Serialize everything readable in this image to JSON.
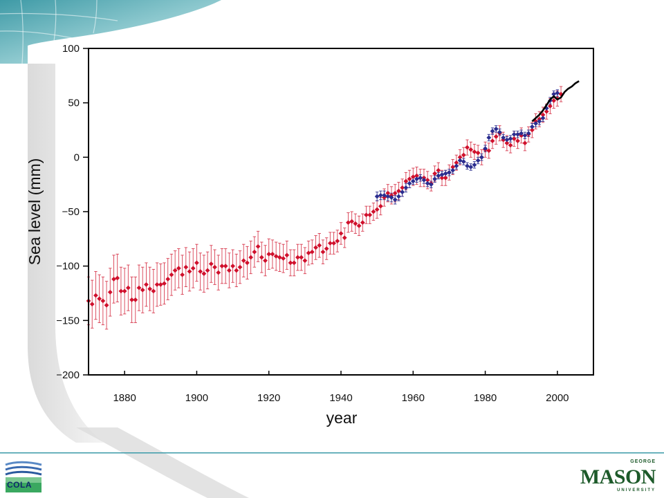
{
  "colors": {
    "hist_series": "#d0102c",
    "tide_series": "#2a2d8f",
    "sat_series": "#000000",
    "error_bar": "#d83c50",
    "accent_teal": "#3a9aa8"
  },
  "footer": {
    "left_logo_text": "COLA",
    "right_logo_top": "GEORGE",
    "right_logo_main": "MASON",
    "right_logo_bottom": "UNIVERSITY"
  },
  "chart_data": {
    "type": "scatter",
    "xlabel": "year",
    "ylabel": "Sea level (mm)",
    "xlim": [
      1870,
      2010
    ],
    "ylim": [
      -200,
      100
    ],
    "xticks": [
      1880,
      1900,
      1920,
      1940,
      1960,
      1980,
      2000
    ],
    "yticks": [
      -200,
      -150,
      -100,
      -50,
      0,
      50,
      100
    ],
    "grid": false,
    "series": [
      {
        "color": "red",
        "markers": "diamond",
        "error_bars": true,
        "x": [
          1870,
          1871,
          1872,
          1873,
          1874,
          1875,
          1876,
          1877,
          1878,
          1879,
          1880,
          1881,
          1882,
          1883,
          1884,
          1885,
          1886,
          1887,
          1888,
          1889,
          1890,
          1891,
          1892,
          1893,
          1894,
          1895,
          1896,
          1897,
          1898,
          1899,
          1900,
          1901,
          1902,
          1903,
          1904,
          1905,
          1906,
          1907,
          1908,
          1909,
          1910,
          1911,
          1912,
          1913,
          1914,
          1915,
          1916,
          1917,
          1918,
          1919,
          1920,
          1921,
          1922,
          1923,
          1924,
          1925,
          1926,
          1927,
          1928,
          1929,
          1930,
          1931,
          1932,
          1933,
          1934,
          1935,
          1936,
          1937,
          1938,
          1939,
          1940,
          1941,
          1942,
          1943,
          1944,
          1945,
          1946,
          1947,
          1948,
          1949,
          1950,
          1951,
          1952,
          1953,
          1954,
          1955,
          1956,
          1957,
          1958,
          1959,
          1960,
          1961,
          1962,
          1963,
          1964,
          1965,
          1966,
          1967,
          1968,
          1969,
          1970,
          1971,
          1972,
          1973,
          1974,
          1975,
          1976,
          1977,
          1978,
          1979,
          1980,
          1981,
          1982,
          1983,
          1984,
          1985,
          1986,
          1987,
          1988,
          1989,
          1990,
          1991,
          1992,
          1993,
          1994,
          1995,
          1996,
          1997,
          1998,
          1999,
          2000,
          2001
        ],
        "y": [
          -132,
          -135,
          -127,
          -130,
          -132,
          -136,
          -124,
          -112,
          -111,
          -123,
          -123,
          -120,
          -131,
          -131,
          -120,
          -122,
          -117,
          -121,
          -123,
          -117,
          -117,
          -116,
          -112,
          -108,
          -104,
          -102,
          -108,
          -101,
          -105,
          -102,
          -97,
          -105,
          -107,
          -104,
          -98,
          -101,
          -106,
          -100,
          -100,
          -104,
          -100,
          -104,
          -101,
          -95,
          -97,
          -92,
          -87,
          -82,
          -92,
          -95,
          -89,
          -89,
          -91,
          -92,
          -93,
          -90,
          -97,
          -97,
          -92,
          -92,
          -95,
          -88,
          -87,
          -83,
          -81,
          -87,
          -84,
          -79,
          -79,
          -77,
          -70,
          -74,
          -60,
          -59,
          -61,
          -63,
          -60,
          -53,
          -53,
          -50,
          -48,
          -45,
          -37,
          -33,
          -35,
          -33,
          -31,
          -28,
          -22,
          -20,
          -18,
          -17,
          -19,
          -19,
          -21,
          -24,
          -15,
          -12,
          -19,
          -19,
          -14,
          -9,
          -5,
          0,
          2,
          9,
          7,
          5,
          4,
          0,
          7,
          6,
          15,
          19,
          22,
          16,
          13,
          11,
          17,
          15,
          20,
          13,
          21,
          25,
          33,
          35,
          39,
          42,
          47,
          52,
          54,
          58
        ],
        "err": [
          22,
          22,
          22,
          22,
          22,
          22,
          22,
          22,
          22,
          22,
          21,
          21,
          21,
          21,
          21,
          21,
          20,
          20,
          20,
          20,
          19,
          19,
          19,
          19,
          18,
          18,
          18,
          18,
          18,
          18,
          17,
          17,
          17,
          17,
          17,
          16,
          16,
          16,
          16,
          16,
          15,
          15,
          15,
          15,
          15,
          15,
          14,
          14,
          14,
          14,
          14,
          13,
          13,
          13,
          13,
          13,
          12,
          12,
          12,
          12,
          12,
          11,
          11,
          11,
          11,
          11,
          10,
          10,
          10,
          10,
          10,
          9,
          9,
          9,
          9,
          9,
          8,
          8,
          8,
          8,
          8,
          8,
          8,
          8,
          8,
          8,
          8,
          8,
          8,
          8,
          8,
          8,
          8,
          8,
          8,
          7,
          7,
          7,
          7,
          7,
          7,
          7,
          7,
          7,
          7,
          7,
          7,
          7,
          7,
          7,
          7,
          7,
          7,
          7,
          7,
          7,
          7,
          7,
          7,
          7,
          7,
          7,
          7,
          7,
          7,
          7,
          7,
          7,
          7,
          7,
          7,
          7
        ]
      },
      {
        "color": "blue",
        "markers": "diamond",
        "error_bars": true,
        "x": [
          1950,
          1951,
          1952,
          1953,
          1954,
          1955,
          1956,
          1957,
          1958,
          1959,
          1960,
          1961,
          1962,
          1963,
          1964,
          1965,
          1966,
          1967,
          1968,
          1969,
          1970,
          1971,
          1972,
          1973,
          1974,
          1975,
          1976,
          1977,
          1978,
          1979,
          1980,
          1981,
          1982,
          1983,
          1984,
          1985,
          1986,
          1987,
          1988,
          1989,
          1990,
          1991,
          1992,
          1993,
          1994,
          1995,
          1996,
          1997,
          1998,
          1999,
          2000
        ],
        "y": [
          -36,
          -35,
          -35,
          -36,
          -37,
          -39,
          -36,
          -32,
          -28,
          -24,
          -22,
          -20,
          -19,
          -21,
          -24,
          -25,
          -20,
          -17,
          -16,
          -15,
          -14,
          -12,
          -8,
          -3,
          -4,
          -8,
          -9,
          -7,
          -3,
          0,
          8,
          18,
          24,
          26,
          23,
          18,
          16,
          17,
          21,
          21,
          22,
          20,
          22,
          28,
          31,
          33,
          36,
          45,
          52,
          58,
          59
        ],
        "err": [
          4,
          4,
          4,
          4,
          4,
          4,
          4,
          4,
          4,
          4,
          3,
          3,
          3,
          3,
          3,
          3,
          3,
          3,
          3,
          3,
          3,
          3,
          3,
          3,
          3,
          3,
          3,
          3,
          3,
          3,
          3,
          3,
          3,
          3,
          3,
          3,
          3,
          3,
          3,
          3,
          3,
          3,
          3,
          3,
          3,
          3,
          3,
          3,
          3,
          3,
          3
        ]
      },
      {
        "color": "black",
        "markers": "line",
        "error_bars": false,
        "x": [
          1993,
          1994,
          1995,
          1996,
          1997,
          1998,
          1999,
          2000,
          2001,
          2002,
          2003,
          2004,
          2005,
          2006
        ],
        "y": [
          33,
          36,
          39,
          43,
          48,
          53,
          56,
          53,
          55,
          60,
          63,
          65,
          68,
          70
        ]
      }
    ]
  }
}
